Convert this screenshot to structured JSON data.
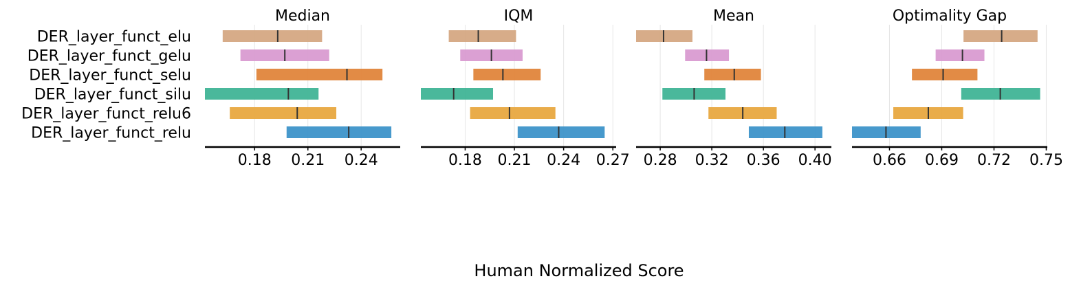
{
  "figure": {
    "xlabel": "Human Normalized Score"
  },
  "chart_data": {
    "type": "interval",
    "algorithms": [
      "DER_layer_funct_elu",
      "DER_layer_funct_gelu",
      "DER_layer_funct_selu",
      "DER_layer_funct_silu",
      "DER_layer_funct_relu6",
      "DER_layer_funct_relu"
    ],
    "colors": {
      "DER_layer_funct_elu": "#d5a883",
      "DER_layer_funct_gelu": "#d99bd1",
      "DER_layer_funct_selu": "#e0853b",
      "DER_layer_funct_silu": "#40b496",
      "DER_layer_funct_relu6": "#e8a840",
      "DER_layer_funct_relu": "#3d94c9"
    },
    "xlabel": "Human Normalized Score",
    "grid": "vertical",
    "panels": [
      {
        "title": "Median",
        "xlim": [
          0.152,
          0.262
        ],
        "ticks": [
          0.18,
          0.21,
          0.24
        ],
        "tick_labels": [
          "0.18",
          "0.21",
          "0.24"
        ],
        "series": [
          {
            "algorithm": "DER_layer_funct_elu",
            "low": 0.162,
            "high": 0.218,
            "point": 0.193
          },
          {
            "algorithm": "DER_layer_funct_gelu",
            "low": 0.172,
            "high": 0.222,
            "point": 0.197
          },
          {
            "algorithm": "DER_layer_funct_selu",
            "low": 0.181,
            "high": 0.252,
            "point": 0.232
          },
          {
            "algorithm": "DER_layer_funct_silu",
            "low": 0.152,
            "high": 0.216,
            "point": 0.199
          },
          {
            "algorithm": "DER_layer_funct_relu6",
            "low": 0.166,
            "high": 0.226,
            "point": 0.204
          },
          {
            "algorithm": "DER_layer_funct_relu",
            "low": 0.198,
            "high": 0.257,
            "point": 0.233
          }
        ]
      },
      {
        "title": "IQM",
        "xlim": [
          0.153,
          0.272
        ],
        "ticks": [
          0.18,
          0.21,
          0.24,
          0.27
        ],
        "tick_labels": [
          "0.18",
          "0.21",
          "0.24",
          "0.27"
        ],
        "series": [
          {
            "algorithm": "DER_layer_funct_elu",
            "low": 0.17,
            "high": 0.211,
            "point": 0.188
          },
          {
            "algorithm": "DER_layer_funct_gelu",
            "low": 0.177,
            "high": 0.215,
            "point": 0.196
          },
          {
            "algorithm": "DER_layer_funct_selu",
            "low": 0.185,
            "high": 0.226,
            "point": 0.203
          },
          {
            "algorithm": "DER_layer_funct_silu",
            "low": 0.153,
            "high": 0.197,
            "point": 0.173
          },
          {
            "algorithm": "DER_layer_funct_relu6",
            "low": 0.183,
            "high": 0.235,
            "point": 0.207
          },
          {
            "algorithm": "DER_layer_funct_relu",
            "low": 0.212,
            "high": 0.265,
            "point": 0.237
          }
        ]
      },
      {
        "title": "Mean",
        "xlim": [
          0.2613,
          0.4127
        ],
        "ticks": [
          0.28,
          0.32,
          0.36,
          0.4
        ],
        "tick_labels": [
          "0.28",
          "0.32",
          "0.36",
          "0.40"
        ],
        "series": [
          {
            "algorithm": "DER_layer_funct_elu",
            "low": 0.2613,
            "high": 0.305,
            "point": 0.2826
          },
          {
            "algorithm": "DER_layer_funct_gelu",
            "low": 0.2993,
            "high": 0.3333,
            "point": 0.3159
          },
          {
            "algorithm": "DER_layer_funct_selu",
            "low": 0.3142,
            "high": 0.3581,
            "point": 0.3374
          },
          {
            "algorithm": "DER_layer_funct_silu",
            "low": 0.2817,
            "high": 0.3306,
            "point": 0.3063
          },
          {
            "algorithm": "DER_layer_funct_relu6",
            "low": 0.3174,
            "high": 0.3703,
            "point": 0.344
          },
          {
            "algorithm": "DER_layer_funct_relu",
            "low": 0.3487,
            "high": 0.4057,
            "point": 0.3766
          }
        ]
      },
      {
        "title": "Optimality Gap",
        "xlim": [
          0.6385,
          0.7506
        ],
        "ticks": [
          0.66,
          0.69,
          0.72,
          0.75
        ],
        "tick_labels": [
          "0.66",
          "0.69",
          "0.72",
          "0.75"
        ],
        "series": [
          {
            "algorithm": "DER_layer_funct_elu",
            "low": 0.7025,
            "high": 0.745,
            "point": 0.7244
          },
          {
            "algorithm": "DER_layer_funct_gelu",
            "low": 0.6865,
            "high": 0.7145,
            "point": 0.7019
          },
          {
            "algorithm": "DER_layer_funct_selu",
            "low": 0.6729,
            "high": 0.7105,
            "point": 0.6908
          },
          {
            "algorithm": "DER_layer_funct_silu",
            "low": 0.7012,
            "high": 0.7465,
            "point": 0.7236
          },
          {
            "algorithm": "DER_layer_funct_relu6",
            "low": 0.6622,
            "high": 0.7023,
            "point": 0.6823
          },
          {
            "algorithm": "DER_layer_funct_relu",
            "low": 0.6385,
            "high": 0.6779,
            "point": 0.658
          }
        ]
      }
    ]
  }
}
